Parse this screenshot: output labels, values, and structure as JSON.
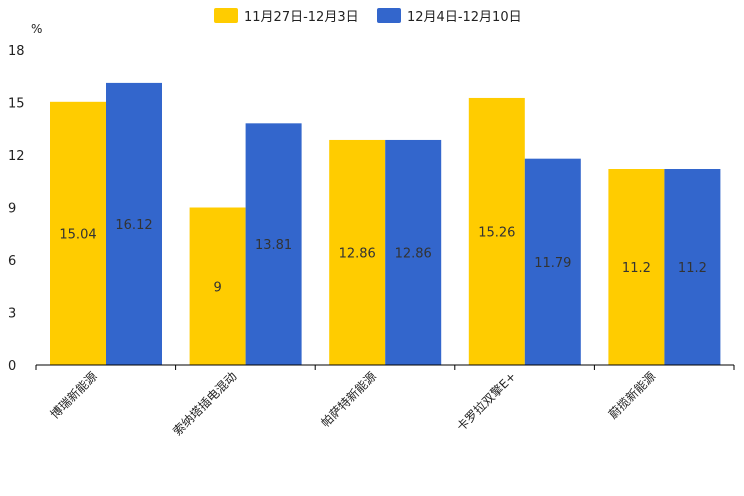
{
  "chart_data": {
    "type": "bar",
    "title": "",
    "ylabel": "%",
    "xlabel": "",
    "ylim": [
      0,
      18
    ],
    "yticks": [
      0,
      3,
      6,
      9,
      12,
      15,
      18
    ],
    "legend_position": "top-center",
    "grid": false,
    "categories": [
      "博瑞新能源",
      "索纳塔插电混动",
      "帕萨特新能源",
      "卡罗拉双擎E+",
      "蔚揽新能源"
    ],
    "series": [
      {
        "name": "11月27日-12月3日",
        "color": "#FFCC00",
        "values": [
          15.04,
          9,
          12.86,
          15.26,
          11.2
        ],
        "labels": [
          "15.04",
          "9",
          "12.86",
          "15.26",
          "11.2"
        ]
      },
      {
        "name": "12月4日-12月10日",
        "color": "#3366CC",
        "values": [
          16.12,
          13.81,
          12.86,
          11.79,
          11.2
        ],
        "labels": [
          "16.12",
          "13.81",
          "12.86",
          "11.79",
          "11.2"
        ]
      }
    ]
  }
}
